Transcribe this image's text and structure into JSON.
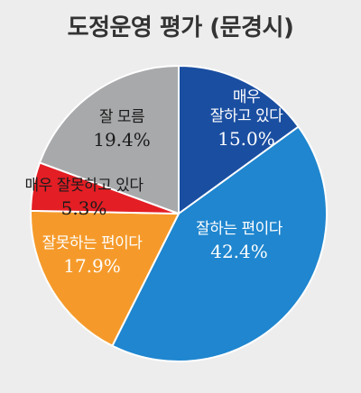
{
  "title": "도정운영 평가 (문경시)",
  "colors": {
    "background": "#ededed",
    "title": "#333333"
  },
  "chart_data": {
    "type": "pie",
    "title": "도정운영 평가 (문경시)",
    "start_angle_deg": 0,
    "direction": "clockwise",
    "slices": [
      {
        "label": "매우\n잘하고 있다",
        "value": 15.0,
        "value_label": "15.0%",
        "color": "#1a4ea1",
        "text_color": "#ffffff"
      },
      {
        "label": "잘하는 편이다",
        "value": 42.4,
        "value_label": "42.4%",
        "color": "#1f86cf",
        "text_color": "#ffffff"
      },
      {
        "label": "잘못하는 편이다",
        "value": 17.9,
        "value_label": "17.9%",
        "color": "#f59a2a",
        "text_color": "#ffffff"
      },
      {
        "label": "매우 잘못하고 있다",
        "value": 5.3,
        "value_label": "5.3%",
        "color": "#e31e24",
        "text_color": "#1a1a1a"
      },
      {
        "label": "잘 모름",
        "value": 19.4,
        "value_label": "19.4%",
        "color": "#a8a9ab",
        "text_color": "#1a1a1a"
      }
    ]
  }
}
